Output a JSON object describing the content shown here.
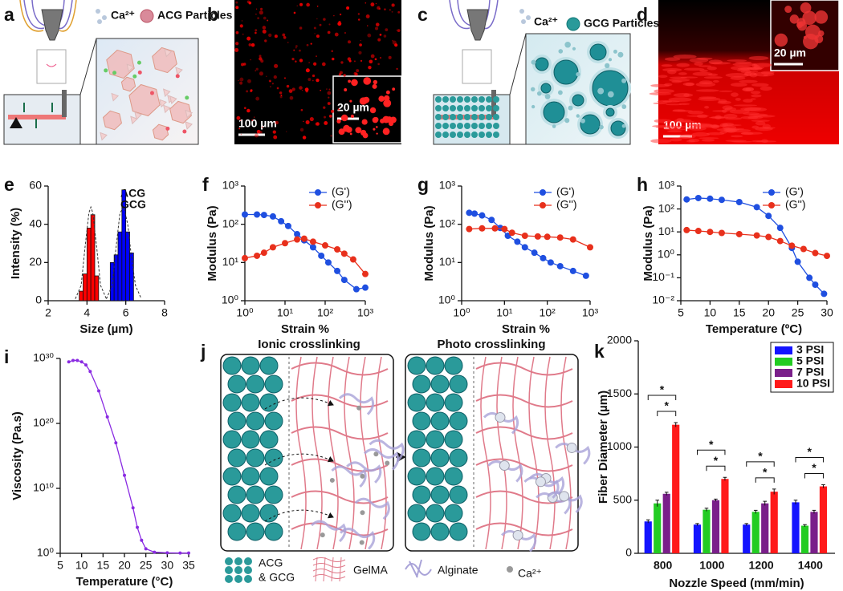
{
  "panel_labels": [
    "a",
    "b",
    "c",
    "d",
    "e",
    "f",
    "g",
    "h",
    "i",
    "j",
    "k"
  ],
  "panel_a": {
    "ion": "Ca²⁺",
    "particles": "ACG Particles"
  },
  "panel_b": {
    "scale_main": "100 µm",
    "scale_inset": "20 µm"
  },
  "panel_c": {
    "ion": "Ca²⁺",
    "particles": "GCG Particles"
  },
  "panel_d": {
    "scale_inset": "20 µm",
    "scale_main": "100 µm"
  },
  "panel_j": {
    "titles": [
      "Ionic crosslinking",
      "Photo crosslinking"
    ],
    "legend_particles": [
      "ACG",
      "& GCG"
    ],
    "legend": [
      "GelMA",
      "Alginate",
      "Ca²⁺"
    ]
  },
  "chart_data": [
    {
      "type": "histogram",
      "xlabel": "Size (µm)",
      "ylabel": "Intensity (%)",
      "xlim": [
        2,
        8
      ],
      "xticks": [
        2,
        4,
        6,
        8
      ],
      "ylim": [
        0,
        60
      ],
      "yticks": [
        0,
        20,
        40,
        60
      ],
      "series": [
        {
          "name": "ACG",
          "color": "#ff0000",
          "bins": [
            3.6,
            3.8,
            4.0,
            4.2,
            4.4,
            4.6
          ],
          "values": [
            5,
            14,
            38,
            45,
            13
          ],
          "fit_x": [
            3.4,
            3.7,
            3.9,
            4.1,
            4.2,
            4.3,
            4.5,
            4.7,
            5.0
          ],
          "fit_values": [
            1,
            8,
            28,
            46,
            49,
            46,
            28,
            8,
            1
          ]
        },
        {
          "name": "GCG",
          "color": "#0000ff",
          "bins": [
            5.2,
            5.4,
            5.6,
            5.8,
            6.0,
            6.2,
            6.4
          ],
          "values": [
            20,
            24,
            36,
            58,
            36,
            25
          ],
          "fit_x": [
            5.0,
            5.3,
            5.5,
            5.7,
            5.9,
            6.1,
            6.3,
            6.5,
            6.8
          ],
          "fit_values": [
            1,
            8,
            28,
            46,
            49,
            40,
            22,
            8,
            1
          ]
        }
      ]
    },
    {
      "type": "line",
      "xlabel": "Strain %",
      "ylabel": "Modulus (Pa)",
      "xscale": "log",
      "yscale": "log",
      "xlim": [
        1,
        1000
      ],
      "xticks": [
        {
          "value": 1,
          "label": "10⁰"
        },
        {
          "value": 10,
          "label": "10¹"
        },
        {
          "value": 100,
          "label": "10²"
        },
        {
          "value": 1000,
          "label": "10³"
        }
      ],
      "ylim": [
        1,
        1000
      ],
      "yticks": [
        {
          "value": 1,
          "label": "10⁰"
        },
        {
          "value": 10,
          "label": "10¹"
        },
        {
          "value": 100,
          "label": "10²"
        },
        {
          "value": 1000,
          "label": "10³"
        }
      ],
      "series": [
        {
          "name": "(G')",
          "color": "#1f4fe0",
          "x": [
            1,
            2,
            3,
            5,
            8,
            12,
            20,
            30,
            50,
            80,
            120,
            200,
            300,
            600,
            1000
          ],
          "values": [
            180,
            180,
            175,
            160,
            120,
            90,
            55,
            38,
            25,
            15,
            10,
            6,
            3.5,
            2,
            2.2
          ]
        },
        {
          "name": "(G'')",
          "color": "#e8301c",
          "x": [
            1,
            2,
            3,
            5,
            10,
            20,
            30,
            50,
            100,
            200,
            300,
            500,
            1000
          ],
          "values": [
            13,
            15,
            18,
            25,
            32,
            40,
            42,
            35,
            28,
            22,
            17,
            12,
            5
          ]
        }
      ]
    },
    {
      "type": "line",
      "xlabel": "Strain %",
      "ylabel": "Modulus (Pa)",
      "xscale": "log",
      "yscale": "log",
      "xlim": [
        1,
        1000
      ],
      "xticks": [
        {
          "value": 1,
          "label": "10⁰"
        },
        {
          "value": 10,
          "label": "10¹"
        },
        {
          "value": 100,
          "label": "10²"
        },
        {
          "value": 1000,
          "label": "10³"
        }
      ],
      "ylim": [
        1,
        1000
      ],
      "yticks": [
        {
          "value": 1,
          "label": "10⁰"
        },
        {
          "value": 10,
          "label": "10¹"
        },
        {
          "value": 100,
          "label": "10²"
        },
        {
          "value": 1000,
          "label": "10³"
        }
      ],
      "series": [
        {
          "name": "(G')",
          "color": "#1f4fe0",
          "x": [
            1.5,
            2,
            3,
            5,
            8,
            12,
            20,
            30,
            50,
            80,
            120,
            200,
            400,
            800
          ],
          "values": [
            200,
            190,
            170,
            130,
            80,
            50,
            35,
            25,
            18,
            13,
            10,
            8,
            6,
            4.5
          ]
        },
        {
          "name": "(G'')",
          "color": "#e8301c",
          "x": [
            1.5,
            3,
            6,
            10,
            15,
            30,
            60,
            100,
            200,
            400,
            1000
          ],
          "values": [
            75,
            78,
            78,
            75,
            60,
            50,
            48,
            47,
            45,
            40,
            25
          ]
        }
      ]
    },
    {
      "type": "line",
      "xlabel": "Temperature (ºC)",
      "ylabel": "Modulus (Pa)",
      "yscale": "log",
      "xlim": [
        5,
        30
      ],
      "xticks": [
        5,
        10,
        15,
        20,
        25,
        30
      ],
      "ylim": [
        0.01,
        1000
      ],
      "yticks": [
        {
          "value": 0.01,
          "label": "10⁻²"
        },
        {
          "value": 0.1,
          "label": "10⁻¹"
        },
        {
          "value": 1,
          "label": "10⁰"
        },
        {
          "value": 10,
          "label": "10¹"
        },
        {
          "value": 100,
          "label": "10²"
        },
        {
          "value": 1000,
          "label": "10³"
        }
      ],
      "series": [
        {
          "name": "(G')",
          "color": "#1f4fe0",
          "x": [
            6,
            8,
            10,
            12,
            15,
            18,
            20,
            22,
            24,
            25,
            27,
            28,
            29.5
          ],
          "values": [
            260,
            300,
            280,
            250,
            200,
            120,
            50,
            15,
            2,
            0.5,
            0.1,
            0.05,
            0.02
          ]
        },
        {
          "name": "(G'')",
          "color": "#e8301c",
          "x": [
            6,
            8,
            10,
            12,
            15,
            18,
            20,
            22,
            24,
            26,
            28,
            30
          ],
          "values": [
            12,
            11,
            10,
            9,
            8,
            7,
            6,
            4,
            2.5,
            1.8,
            1.2,
            0.9
          ]
        }
      ]
    },
    {
      "type": "line",
      "xlabel": "Temperature (°C)",
      "ylabel": "Viscosity (Pa.s)",
      "yscale": "log",
      "marker_size": 2,
      "xlim": [
        5,
        35
      ],
      "xticks": [
        5,
        10,
        15,
        20,
        25,
        30,
        35
      ],
      "ylim": [
        1,
        1e+30
      ],
      "yticks": [
        {
          "value": 1,
          "label": "10⁰"
        },
        {
          "value": 10000000000.0,
          "label": "10¹⁰"
        },
        {
          "value": 1e+20,
          "label": "10²⁰"
        },
        {
          "value": 1e+30,
          "label": "10³⁰"
        }
      ],
      "series": [
        {
          "color": "#8a2be2",
          "x": [
            7,
            8,
            9,
            10,
            11,
            12,
            14,
            16,
            18,
            20,
            22,
            23,
            24,
            25,
            27,
            30,
            33,
            35
          ],
          "values": [
            3e+29,
            5e+29,
            5e+29,
            3e+29,
            1e+29,
            1e+28,
            1e+25,
            1e+21,
            1e+17,
            1000000000000.0,
            10000000.0,
            10000.0,
            100,
            5,
            1.5,
            1.2,
            1.1,
            1.1
          ]
        }
      ]
    },
    {
      "type": "bar",
      "xlabel": "Nozzle Speed (mm/min)",
      "ylabel": "Fiber Diameter (µm)",
      "categories": [
        "800",
        "1000",
        "1200",
        "1400"
      ],
      "ylim": [
        0,
        2000
      ],
      "yticks": [
        0,
        500,
        1000,
        1500,
        2000
      ],
      "series": [
        {
          "name": "3 PSI",
          "color": "#1414ff",
          "values": [
            300,
            270,
            270,
            480
          ],
          "errors": [
            15,
            10,
            10,
            20
          ]
        },
        {
          "name": "5 PSI",
          "color": "#22cc22",
          "values": [
            470,
            410,
            390,
            260
          ],
          "errors": [
            30,
            15,
            15,
            10
          ]
        },
        {
          "name": "7 PSI",
          "color": "#7a1f8a",
          "values": [
            560,
            500,
            470,
            390
          ],
          "errors": [
            15,
            10,
            20,
            15
          ]
        },
        {
          "name": "10 PSI",
          "color": "#ff1a1a",
          "values": [
            1210,
            700,
            580,
            630
          ],
          "errors": [
            20,
            15,
            25,
            15
          ]
        }
      ],
      "annotations": [
        "*",
        "*",
        "*",
        "*",
        "*",
        "*",
        "*",
        "*"
      ]
    }
  ]
}
